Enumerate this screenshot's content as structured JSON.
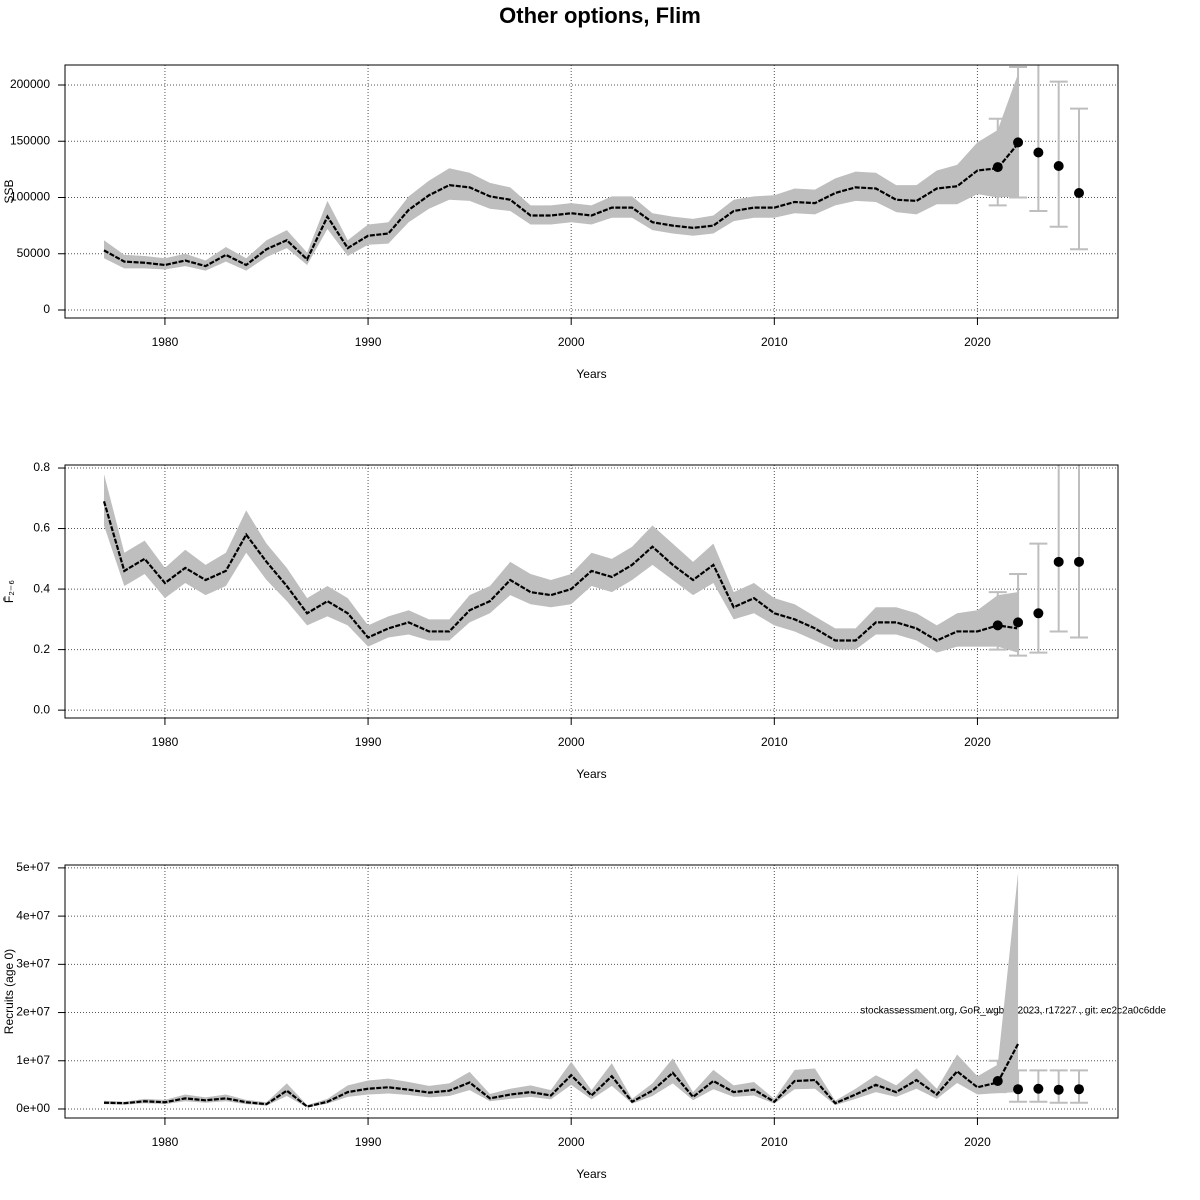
{
  "title": "Other options, Flim",
  "footnote": "stockassessment.org, GoR_wgbfas2023, r17227 , git: ec2c2a0c6dde",
  "chart_data": [
    {
      "type": "line",
      "xlabel": "Years",
      "ylabel": "SSB",
      "xlim": [
        1975.08,
        2026.92
      ],
      "xticks": [
        1980,
        1990,
        2000,
        2010,
        2020
      ],
      "ylim": [
        -7111,
        217778
      ],
      "yticks": [
        0,
        50000,
        100000,
        150000,
        200000
      ],
      "grid": true,
      "color": "#000000",
      "band_color": "#bebebe",
      "forecast_color": "#000000",
      "errorbar_color": "#bebebe",
      "x": [
        1977,
        1978,
        1979,
        1980,
        1981,
        1982,
        1983,
        1984,
        1985,
        1986,
        1987,
        1988,
        1989,
        1990,
        1991,
        1992,
        1993,
        1994,
        1995,
        1996,
        1997,
        1998,
        1999,
        2000,
        2001,
        2002,
        2003,
        2004,
        2005,
        2006,
        2007,
        2008,
        2009,
        2010,
        2011,
        2012,
        2013,
        2014,
        2015,
        2016,
        2017,
        2018,
        2019,
        2020,
        2021,
        2022
      ],
      "values": [
        53000,
        43000,
        42000,
        40000,
        44000,
        39000,
        49000,
        40000,
        54000,
        62000,
        45000,
        83000,
        55000,
        66000,
        68000,
        89000,
        102000,
        111000,
        109000,
        101000,
        98000,
        84000,
        84000,
        86000,
        84000,
        91000,
        91000,
        78000,
        75000,
        73000,
        75000,
        88000,
        91000,
        91000,
        96000,
        95000,
        104000,
        109000,
        108000,
        98000,
        97000,
        108000,
        110000,
        124000,
        126000,
        148000
      ],
      "lower": [
        46000,
        37000,
        37000,
        36000,
        39000,
        35000,
        43000,
        35000,
        47000,
        55000,
        40000,
        72000,
        48000,
        58000,
        59000,
        78000,
        90000,
        98000,
        97000,
        90000,
        88000,
        76000,
        76000,
        78000,
        76000,
        82000,
        82000,
        71000,
        68000,
        66000,
        68000,
        79000,
        82000,
        82000,
        86000,
        85000,
        93000,
        97000,
        96000,
        87000,
        85000,
        94000,
        94000,
        103000,
        100000,
        101000
      ],
      "upper": [
        62000,
        49000,
        48000,
        46000,
        50000,
        44000,
        56000,
        46000,
        62000,
        71000,
        51000,
        97000,
        62000,
        76000,
        78000,
        101000,
        115000,
        126000,
        122000,
        113000,
        109000,
        93000,
        93000,
        95000,
        93000,
        101000,
        101000,
        86000,
        83000,
        81000,
        84000,
        98000,
        101000,
        102000,
        108000,
        107000,
        117000,
        123000,
        122000,
        111000,
        111000,
        124000,
        129000,
        149000,
        160000,
        210000
      ],
      "forecast": {
        "x": [
          2021,
          2022,
          2023,
          2024,
          2025
        ],
        "values": [
          127000,
          149000,
          140000,
          128000,
          104000
        ],
        "lower": [
          93000,
          100000,
          88000,
          74000,
          54000
        ],
        "upper": [
          170000,
          216000,
          225000,
          203000,
          179000
        ]
      }
    },
    {
      "type": "line",
      "xlabel": "Years",
      "ylabel": "F̄₂₋₆",
      "xlim": [
        1975.08,
        2026.92
      ],
      "xticks": [
        1980,
        1990,
        2000,
        2010,
        2020
      ],
      "ylim": [
        -0.026,
        0.81
      ],
      "yticks": [
        {
          "value": 0,
          "label": "0.0"
        },
        0.2,
        0.4,
        0.6,
        0.8
      ],
      "grid": true,
      "color": "#000000",
      "band_color": "#bebebe",
      "forecast_color": "#000000",
      "errorbar_color": "#bebebe",
      "x": [
        1977,
        1978,
        1979,
        1980,
        1981,
        1982,
        1983,
        1984,
        1985,
        1986,
        1987,
        1988,
        1989,
        1990,
        1991,
        1992,
        1993,
        1994,
        1995,
        1996,
        1997,
        1998,
        1999,
        2000,
        2001,
        2002,
        2003,
        2004,
        2005,
        2006,
        2007,
        2008,
        2009,
        2010,
        2011,
        2012,
        2013,
        2014,
        2015,
        2016,
        2017,
        2018,
        2019,
        2020,
        2021,
        2022
      ],
      "values": [
        0.69,
        0.46,
        0.5,
        0.42,
        0.47,
        0.43,
        0.46,
        0.58,
        0.49,
        0.41,
        0.32,
        0.36,
        0.32,
        0.24,
        0.27,
        0.29,
        0.26,
        0.26,
        0.33,
        0.36,
        0.43,
        0.39,
        0.38,
        0.4,
        0.46,
        0.44,
        0.48,
        0.54,
        0.48,
        0.43,
        0.48,
        0.34,
        0.37,
        0.32,
        0.3,
        0.27,
        0.23,
        0.23,
        0.29,
        0.29,
        0.27,
        0.23,
        0.26,
        0.26,
        0.28,
        0.27
      ],
      "lower": [
        0.61,
        0.41,
        0.45,
        0.37,
        0.42,
        0.38,
        0.41,
        0.52,
        0.43,
        0.36,
        0.28,
        0.31,
        0.28,
        0.21,
        0.24,
        0.25,
        0.23,
        0.23,
        0.29,
        0.32,
        0.38,
        0.35,
        0.34,
        0.35,
        0.41,
        0.39,
        0.43,
        0.48,
        0.43,
        0.38,
        0.42,
        0.3,
        0.32,
        0.28,
        0.26,
        0.23,
        0.2,
        0.2,
        0.25,
        0.25,
        0.23,
        0.19,
        0.21,
        0.21,
        0.21,
        0.19
      ],
      "upper": [
        0.78,
        0.52,
        0.56,
        0.47,
        0.53,
        0.48,
        0.52,
        0.66,
        0.55,
        0.47,
        0.37,
        0.41,
        0.37,
        0.28,
        0.31,
        0.33,
        0.3,
        0.3,
        0.38,
        0.41,
        0.49,
        0.45,
        0.43,
        0.45,
        0.52,
        0.5,
        0.54,
        0.61,
        0.55,
        0.49,
        0.55,
        0.39,
        0.42,
        0.37,
        0.35,
        0.31,
        0.27,
        0.27,
        0.34,
        0.34,
        0.32,
        0.28,
        0.32,
        0.33,
        0.38,
        0.39
      ],
      "forecast": {
        "x": [
          2021,
          2022,
          2023,
          2024,
          2025
        ],
        "values": [
          0.28,
          0.29,
          0.32,
          0.49,
          0.49
        ],
        "lower": [
          0.2,
          0.18,
          0.19,
          0.26,
          0.24
        ],
        "upper": [
          0.39,
          0.45,
          0.55,
          0.82,
          0.82
        ]
      }
    },
    {
      "type": "line",
      "xlabel": "Years",
      "ylabel": "Recruits (age 0)",
      "xlim": [
        1975.08,
        2026.92
      ],
      "xticks": [
        1980,
        1990,
        2000,
        2010,
        2020
      ],
      "ylim": [
        -1870000,
        50600000
      ],
      "yticks": [
        {
          "value": 0,
          "label": "0e+00"
        },
        {
          "value": 10000000,
          "label": "1e+07"
        },
        {
          "value": 20000000,
          "label": "2e+07"
        },
        {
          "value": 30000000,
          "label": "3e+07"
        },
        {
          "value": 40000000,
          "label": "4e+07"
        },
        {
          "value": 50000000,
          "label": "5e+07"
        }
      ],
      "grid": true,
      "color": "#000000",
      "band_color": "#bebebe",
      "forecast_color": "#000000",
      "errorbar_color": "#bebebe",
      "x": [
        1977,
        1978,
        1979,
        1980,
        1981,
        1982,
        1983,
        1984,
        1985,
        1986,
        1987,
        1988,
        1989,
        1990,
        1991,
        1992,
        1993,
        1994,
        1995,
        1996,
        1997,
        1998,
        1999,
        2000,
        2001,
        2002,
        2003,
        2004,
        2005,
        2006,
        2007,
        2008,
        2009,
        2010,
        2011,
        2012,
        2013,
        2014,
        2015,
        2016,
        2017,
        2018,
        2019,
        2020,
        2021,
        2022
      ],
      "values": [
        1300000,
        1200000,
        1600000,
        1400000,
        2200000,
        1800000,
        2200000,
        1400000,
        1000000,
        3800000,
        500000,
        1500000,
        3500000,
        4200000,
        4500000,
        4000000,
        3400000,
        3800000,
        5500000,
        2200000,
        3000000,
        3500000,
        2800000,
        7000000,
        2800000,
        6800000,
        1500000,
        3800000,
        7500000,
        2500000,
        5800000,
        3500000,
        4000000,
        1500000,
        5800000,
        6000000,
        1200000,
        3000000,
        5000000,
        3500000,
        6000000,
        3000000,
        7800000,
        4500000,
        5500000,
        13500000
      ],
      "lower": [
        1000000,
        900000,
        1200000,
        1000000,
        1600000,
        1300000,
        1600000,
        1000000,
        700000,
        2700000,
        300000,
        1100000,
        2500000,
        3000000,
        3200000,
        2900000,
        2400000,
        2700000,
        3900000,
        1600000,
        2100000,
        2500000,
        2000000,
        5000000,
        2000000,
        4800000,
        1100000,
        2700000,
        5300000,
        1800000,
        4100000,
        2500000,
        2800000,
        1100000,
        4100000,
        4200000,
        800000,
        2100000,
        3500000,
        2500000,
        4200000,
        2100000,
        5400000,
        3000000,
        3300000,
        3500000
      ],
      "upper": [
        1700000,
        1500000,
        2100000,
        1900000,
        3000000,
        2400000,
        3000000,
        1900000,
        1400000,
        5300000,
        800000,
        2100000,
        4900000,
        5900000,
        6300000,
        5600000,
        4800000,
        5300000,
        7700000,
        3100000,
        4200000,
        4900000,
        3900000,
        9800000,
        3900000,
        9500000,
        2100000,
        5300000,
        10500000,
        3500000,
        8100000,
        4900000,
        5600000,
        2100000,
        8100000,
        8400000,
        1700000,
        4200000,
        7000000,
        4900000,
        8400000,
        4200000,
        11300000,
        6800000,
        9200000,
        49000000
      ],
      "forecast": {
        "x": [
          2021,
          2022,
          2023,
          2024,
          2025
        ],
        "values": [
          5800000,
          4100000,
          4200000,
          4000000,
          4100000
        ],
        "lower": [
          3500000,
          1500000,
          1500000,
          1300000,
          1300000
        ],
        "upper": [
          10000000,
          8000000,
          8000000,
          8000000,
          8000000
        ]
      }
    }
  ]
}
